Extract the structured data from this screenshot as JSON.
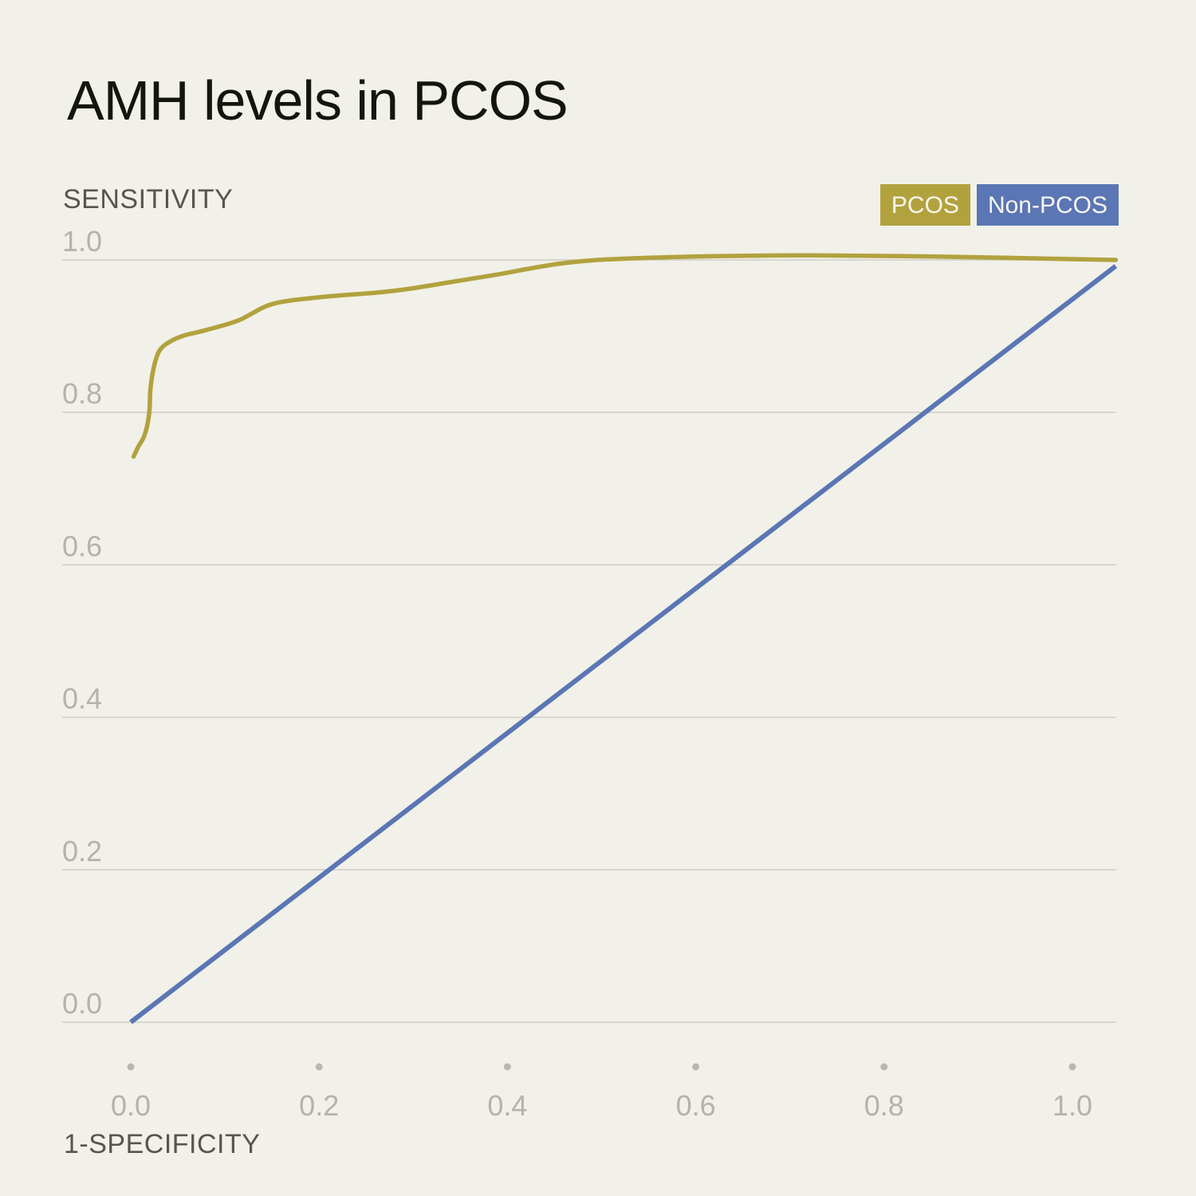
{
  "title": "AMH levels in PCOS",
  "legend": {
    "items": [
      {
        "label": "PCOS",
        "color": "#b2a23e"
      },
      {
        "label": "Non-PCOS",
        "color": "#5b76b4"
      }
    ]
  },
  "style": {
    "background": "#f1f1e9",
    "title_color": "#15150f",
    "grid_color": "#cdcdc5",
    "tick_label_color": "#b3b3ab",
    "axis_title_color": "#56564e",
    "tick_dot_color": "#b8b8b0",
    "legend_text_color": "#f7f6ef",
    "pcos_line_color": "#b2a23e",
    "non_pcos_line_color": "#5b76b4"
  },
  "chart_data": {
    "type": "line",
    "title": "AMH levels in PCOS",
    "xlabel": "1-SPECIFICITY",
    "ylabel": "SENSITIVITY",
    "xlim": [
      0,
      1.047
    ],
    "ylim": [
      0,
      1.0
    ],
    "x_ticks": [
      0,
      0.2,
      0.4,
      0.6,
      0.8,
      1
    ],
    "y_ticks": [
      0,
      0.2,
      0.4,
      0.6,
      0.8,
      1
    ],
    "grid": "horizontal-only",
    "legend_position": "top-right",
    "series": [
      {
        "name": "PCOS",
        "color": "#b2a23e",
        "smooth": true,
        "points": [
          [
            0.003,
            0.742
          ],
          [
            0.008,
            0.755
          ],
          [
            0.014,
            0.768
          ],
          [
            0.018,
            0.786
          ],
          [
            0.02,
            0.805
          ],
          [
            0.021,
            0.832
          ],
          [
            0.025,
            0.862
          ],
          [
            0.031,
            0.882
          ],
          [
            0.042,
            0.893
          ],
          [
            0.057,
            0.901
          ],
          [
            0.08,
            0.908
          ],
          [
            0.115,
            0.921
          ],
          [
            0.15,
            0.942
          ],
          [
            0.2,
            0.951
          ],
          [
            0.26,
            0.957
          ],
          [
            0.295,
            0.962
          ],
          [
            0.34,
            0.971
          ],
          [
            0.39,
            0.981
          ],
          [
            0.425,
            0.989
          ],
          [
            0.455,
            0.995
          ],
          [
            0.485,
            0.999
          ],
          [
            0.53,
            1.002
          ],
          [
            0.62,
            1.005
          ],
          [
            0.72,
            1.006
          ],
          [
            0.82,
            1.005
          ],
          [
            0.92,
            1.003
          ],
          [
            1.0,
            1.001
          ],
          [
            1.046,
            1.0
          ]
        ]
      },
      {
        "name": "Non-PCOS",
        "color": "#5b76b4",
        "smooth": false,
        "points": [
          [
            0,
            0
          ],
          [
            1.046,
            0.992
          ]
        ]
      }
    ]
  }
}
